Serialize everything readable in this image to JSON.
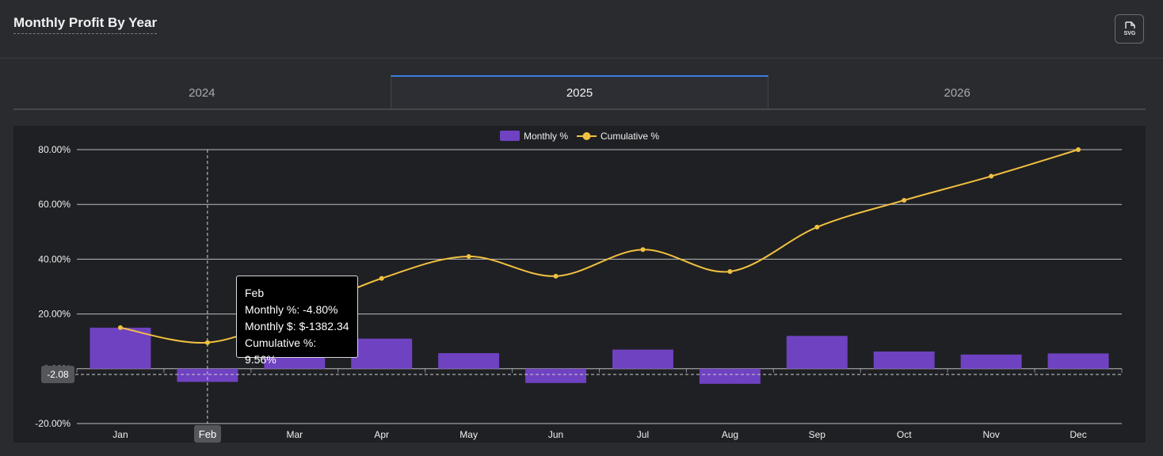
{
  "header": {
    "title": "Monthly Profit By Year",
    "export_label": "SVG"
  },
  "tabs": [
    {
      "label": "2024",
      "active": false
    },
    {
      "label": "2025",
      "active": true
    },
    {
      "label": "2026",
      "active": false
    }
  ],
  "tooltip": {
    "title": "Feb",
    "line1": "Monthly %: -4.80%",
    "line2": "Monthly $: $-1382.34",
    "line3": "Cumulative %: 9.56%"
  },
  "crosshair": {
    "y_label": "-2.08",
    "x_label": "Feb"
  },
  "colors": {
    "bar": "#6f42c1",
    "line": "#f0c040",
    "grid": "#d8d8d8",
    "accent": "#3b7de0"
  },
  "chart_data": {
    "type": "bar",
    "categories": [
      "Jan",
      "Feb",
      "Mar",
      "Apr",
      "May",
      "Jun",
      "Jul",
      "Aug",
      "Sep",
      "Oct",
      "Nov",
      "Dec"
    ],
    "y_ticks": [
      "80.00%",
      "60.00%",
      "40.00%",
      "20.00%",
      "0.00%",
      "-20.00%"
    ],
    "ylim": [
      -20,
      80
    ],
    "legend": "top-center",
    "grid": true,
    "series": [
      {
        "name": "Monthly %",
        "type": "bar",
        "values": [
          15.0,
          -4.8,
          10.0,
          11.0,
          5.7,
          -5.2,
          7.0,
          -5.5,
          12.0,
          6.3,
          5.2,
          5.6
        ]
      },
      {
        "name": "Cumulative %",
        "type": "line",
        "values": [
          15.0,
          9.56,
          20.0,
          33.0,
          41.0,
          33.8,
          43.5,
          35.5,
          51.7,
          61.5,
          70.3,
          80.0
        ]
      }
    ]
  }
}
